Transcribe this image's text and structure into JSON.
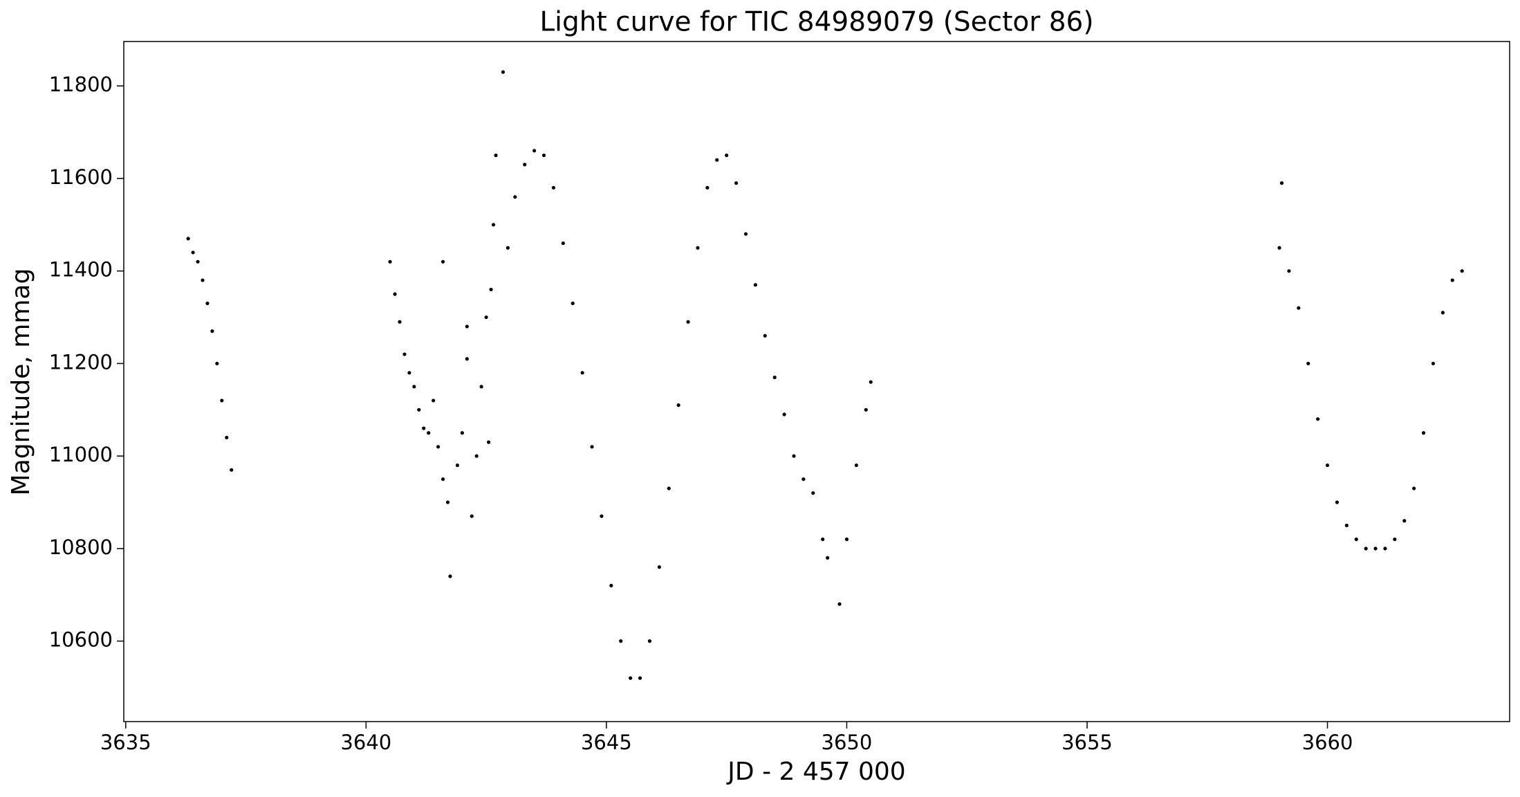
{
  "chart_data": {
    "type": "scatter",
    "title": "Light curve for TIC 84989079 (Sector 86)",
    "x_label": "JD - 2 457 000",
    "y_label": "Magnitude, mmag",
    "color": "#000000",
    "xlim": [
      3634.96,
      3663.79
    ],
    "ylim": [
      10426,
      11896
    ],
    "xticks": [
      3635,
      3640,
      3645,
      3650,
      3655,
      3660
    ],
    "yticks": [
      10600,
      10800,
      11000,
      11200,
      11400,
      11600,
      11800
    ],
    "x": [
      3636.3,
      3636.4,
      3636.5,
      3636.6,
      3636.7,
      3636.8,
      3636.9,
      3637.0,
      3637.1,
      3637.2,
      3640.5,
      3640.6,
      3640.7,
      3640.8,
      3640.9,
      3641.0,
      3641.1,
      3641.2,
      3641.3,
      3641.4,
      3641.5,
      3641.6,
      3641.6,
      3641.7,
      3641.75,
      3641.9,
      3642.0,
      3642.1,
      3642.1,
      3642.2,
      3642.3,
      3642.4,
      3642.5,
      3642.55,
      3642.6,
      3642.65,
      3642.7,
      3642.85,
      3642.95,
      3643.1,
      3643.3,
      3643.5,
      3643.7,
      3643.9,
      3644.1,
      3644.3,
      3644.5,
      3644.7,
      3644.9,
      3645.1,
      3645.3,
      3645.5,
      3645.7,
      3645.9,
      3646.1,
      3646.3,
      3646.5,
      3646.7,
      3646.9,
      3647.1,
      3647.3,
      3647.5,
      3647.7,
      3647.9,
      3648.1,
      3648.3,
      3648.5,
      3648.7,
      3648.9,
      3649.1,
      3649.3,
      3649.5,
      3649.6,
      3649.85,
      3650.0,
      3650.2,
      3650.4,
      3650.5,
      3659.0,
      3659.05,
      3659.2,
      3659.4,
      3659.6,
      3659.8,
      3660.0,
      3660.2,
      3660.4,
      3660.6,
      3660.8,
      3661.0,
      3661.2,
      3661.4,
      3661.6,
      3661.8,
      3662.0,
      3662.2,
      3662.4,
      3662.6,
      3662.8
    ],
    "values": [
      11470,
      11440,
      11420,
      11380,
      11330,
      11270,
      11200,
      11120,
      11040,
      10970,
      11420,
      11350,
      11290,
      11220,
      11180,
      11150,
      11100,
      11060,
      11050,
      11120,
      11020,
      10950,
      11420,
      10900,
      10740,
      10980,
      11050,
      11210,
      11280,
      10870,
      11000,
      11150,
      11300,
      11030,
      11360,
      11500,
      11650,
      11830,
      11450,
      11560,
      11630,
      11660,
      11650,
      11580,
      11460,
      11330,
      11180,
      11020,
      10870,
      10720,
      10600,
      10520,
      10520,
      10600,
      10760,
      10930,
      11110,
      11290,
      11450,
      11580,
      11640,
      11650,
      11590,
      11480,
      11370,
      11260,
      11170,
      11090,
      11000,
      10950,
      10920,
      10820,
      10780,
      10680,
      10820,
      10980,
      11100,
      11160,
      11450,
      11590,
      11400,
      11320,
      11200,
      11080,
      10980,
      10900,
      10850,
      10820,
      10800,
      10800,
      10800,
      10820,
      10860,
      10930,
      11050,
      11200,
      11310,
      11380,
      11400
    ]
  }
}
